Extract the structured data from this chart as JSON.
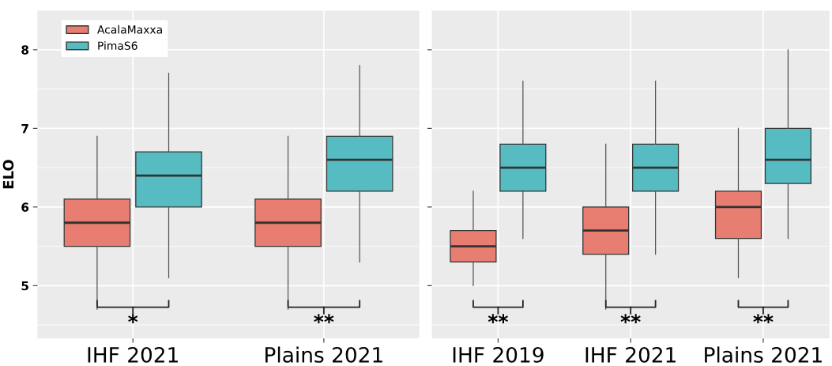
{
  "chart_data": [
    {
      "type": "box",
      "categories": [
        "IHF 2021",
        "Plains 2021"
      ],
      "ylabel": "ELO",
      "ylim": [
        4.33,
        8.5
      ],
      "yticks": [
        5,
        6,
        7,
        8
      ],
      "grid": true,
      "legend": "top left",
      "tick_labels": "xy",
      "series": [
        {
          "name": "AcalaMaxxa",
          "color": "#e87d72",
          "boxes": [
            {
              "low": 4.7,
              "q1": 5.5,
              "median": 5.8,
              "q3": 6.1,
              "high": 6.9
            },
            {
              "low": 4.7,
              "q1": 5.5,
              "median": 5.8,
              "q3": 6.1,
              "high": 6.9
            }
          ]
        },
        {
          "name": "PimaS6",
          "color": "#56bcc2",
          "boxes": [
            {
              "low": 5.1,
              "q1": 6.0,
              "median": 6.4,
              "q3": 6.7,
              "high": 7.7
            },
            {
              "low": 5.3,
              "q1": 6.2,
              "median": 6.6,
              "q3": 6.9,
              "high": 7.8
            }
          ]
        }
      ],
      "annotations": [
        "*",
        "**"
      ]
    },
    {
      "type": "box",
      "categories": [
        "IHF 2019",
        "IHF 2021",
        "Plains 2021"
      ],
      "ylim": [
        4.33,
        8.5
      ],
      "yticks": [
        {
          "value": 5,
          "label": null
        },
        {
          "value": 6,
          "label": null
        },
        {
          "value": 7,
          "label": null
        },
        {
          "value": 8,
          "label": null
        }
      ],
      "grid": true,
      "tick_labels": "x",
      "series": [
        {
          "color": "#e87d72",
          "boxes": [
            {
              "low": 5.0,
              "q1": 5.3,
              "median": 5.5,
              "q3": 5.7,
              "high": 6.2
            },
            {
              "low": 4.7,
              "q1": 5.4,
              "median": 5.7,
              "q3": 6.0,
              "high": 6.8
            },
            {
              "low": 5.1,
              "q1": 5.6,
              "median": 6.0,
              "q3": 6.2,
              "high": 7.0
            }
          ]
        },
        {
          "color": "#56bcc2",
          "boxes": [
            {
              "low": 5.6,
              "q1": 6.2,
              "median": 6.5,
              "q3": 6.8,
              "high": 7.6
            },
            {
              "low": 5.4,
              "q1": 6.2,
              "median": 6.5,
              "q3": 6.8,
              "high": 7.6
            },
            {
              "low": 5.6,
              "q1": 6.3,
              "median": 6.6,
              "q3": 7.0,
              "high": 8.0
            }
          ]
        }
      ],
      "annotations": [
        "**",
        "**",
        "**"
      ]
    }
  ]
}
